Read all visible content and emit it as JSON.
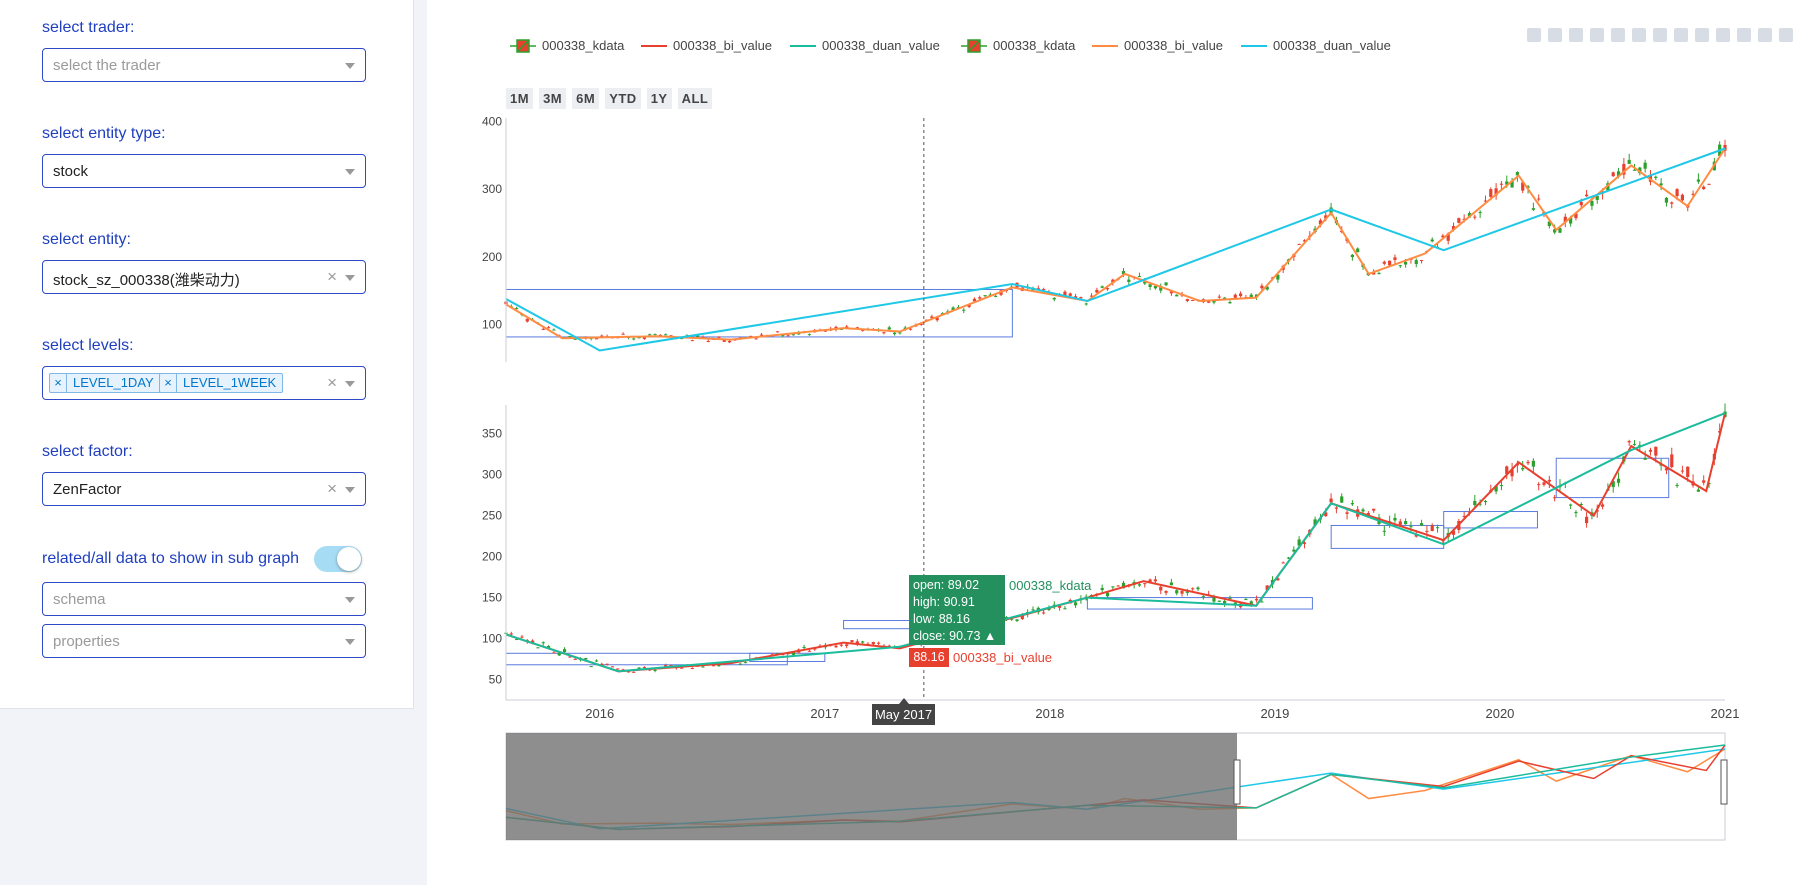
{
  "sidebar": {
    "trader": {
      "label": "select trader:",
      "placeholder": "select the trader"
    },
    "entity_type": {
      "label": "select entity type:",
      "value": "stock"
    },
    "entity": {
      "label": "select entity:",
      "value": "stock_sz_000338(潍柴动力)"
    },
    "levels": {
      "label": "select levels:",
      "tags": [
        "LEVEL_1DAY",
        "LEVEL_1WEEK"
      ]
    },
    "factor": {
      "label": "select factor:",
      "value": "ZenFactor"
    },
    "sub_graph": {
      "label": "related/all data to show in sub graph",
      "toggle_on": true
    },
    "schema": {
      "placeholder": "schema"
    },
    "properties": {
      "placeholder": "properties"
    }
  },
  "chart": {
    "legend": [
      {
        "name": "000338_kdata",
        "type": "candle",
        "color": "#2ca02c"
      },
      {
        "name": "000338_bi_value",
        "type": "line",
        "color": "#e8402f"
      },
      {
        "name": "000338_duan_value",
        "type": "line",
        "color": "#1abc9c"
      },
      {
        "name": "000338_kdata",
        "type": "candle",
        "color": "#2ca02c"
      },
      {
        "name": "000338_bi_value",
        "type": "line",
        "color": "#ff8c42"
      },
      {
        "name": "000338_duan_value",
        "type": "line",
        "color": "#1ec8e6"
      }
    ],
    "range_buttons": [
      "1M",
      "3M",
      "6M",
      "YTD",
      "1Y",
      "ALL"
    ],
    "hover": {
      "open": "open: 89.02",
      "high": "high: 90.91",
      "low": "low: 88.16",
      "close": "close: 90.73 ▲",
      "series": "000338_kdata",
      "bi_value": "88.16",
      "bi_series": "000338_bi_value",
      "x_label": "May 2017"
    },
    "colors": {
      "up": "#2ca02c",
      "down": "#e8402f",
      "orange": "#ff8c42",
      "cyan": "#1ec8e6",
      "teal": "#1abc9c",
      "box": "#5a7be0"
    }
  },
  "chart_data": [
    {
      "type": "candlestick",
      "title": "",
      "y_ticks": [
        100,
        200,
        300,
        400
      ],
      "ylim": [
        45,
        405
      ],
      "series": [
        {
          "name": "000338_bi_value",
          "x": [
            "2015-08",
            "2015-11",
            "2016-04",
            "2016-08",
            "2017-02",
            "2017-05",
            "2017-11",
            "2018-03",
            "2018-05",
            "2018-09",
            "2018-12",
            "2019-04",
            "2019-06",
            "2019-09",
            "2020-02",
            "2020-04",
            "2020-08",
            "2020-11",
            "2021-01"
          ],
          "values": [
            130,
            80,
            83,
            78,
            95,
            90,
            155,
            135,
            175,
            135,
            140,
            265,
            175,
            205,
            320,
            240,
            335,
            275,
            360
          ]
        },
        {
          "name": "000338_duan_value",
          "x": [
            "2015-08",
            "2016-01",
            "2017-11",
            "2018-03",
            "2019-04",
            "2019-10",
            "2021-01"
          ],
          "values": [
            138,
            62,
            160,
            135,
            270,
            210,
            360
          ]
        }
      ],
      "boxes": [
        {
          "x": [
            "2015-08",
            "2017-11"
          ],
          "y": [
            82,
            152
          ]
        }
      ]
    },
    {
      "type": "candlestick",
      "title": "",
      "x_ticks": [
        "2016",
        "2017",
        "2018",
        "2019",
        "2020",
        "2021"
      ],
      "y_ticks": [
        50,
        100,
        150,
        200,
        250,
        300,
        350
      ],
      "ylim": [
        25,
        385
      ],
      "series": [
        {
          "name": "000338_bi_value",
          "x": [
            "2015-08",
            "2016-02",
            "2016-08",
            "2017-02",
            "2017-05",
            "2018-03",
            "2018-06",
            "2018-12",
            "2019-04",
            "2019-10",
            "2020-02",
            "2020-06",
            "2020-08",
            "2020-12",
            "2021-01"
          ],
          "values": [
            105,
            60,
            70,
            95,
            88,
            150,
            170,
            140,
            265,
            220,
            315,
            250,
            335,
            280,
            375
          ]
        },
        {
          "name": "000338_duan_value",
          "x": [
            "2015-08",
            "2016-02",
            "2017-05",
            "2018-03",
            "2018-12",
            "2019-04",
            "2019-10",
            "2020-08",
            "2021-01"
          ],
          "values": [
            105,
            60,
            90,
            150,
            140,
            265,
            215,
            330,
            375
          ]
        }
      ],
      "boxes": [
        {
          "x": [
            "2015-08",
            "2016-11"
          ],
          "y": [
            68,
            82
          ]
        },
        {
          "x": [
            "2016-09",
            "2017-01"
          ],
          "y": [
            72,
            82
          ]
        },
        {
          "x": [
            "2017-02",
            "2017-07"
          ],
          "y": [
            112,
            122
          ]
        },
        {
          "x": [
            "2018-03",
            "2019-03"
          ],
          "y": [
            136,
            150
          ]
        },
        {
          "x": [
            "2019-04",
            "2019-10"
          ],
          "y": [
            210,
            238
          ]
        },
        {
          "x": [
            "2019-10",
            "2020-03"
          ],
          "y": [
            235,
            255
          ]
        },
        {
          "x": [
            "2020-04",
            "2020-10"
          ],
          "y": [
            272,
            320
          ]
        }
      ],
      "hover_point": {
        "x": "2017-05",
        "open": 89.02,
        "high": 90.91,
        "low": 88.16,
        "close": 90.73
      }
    }
  ]
}
